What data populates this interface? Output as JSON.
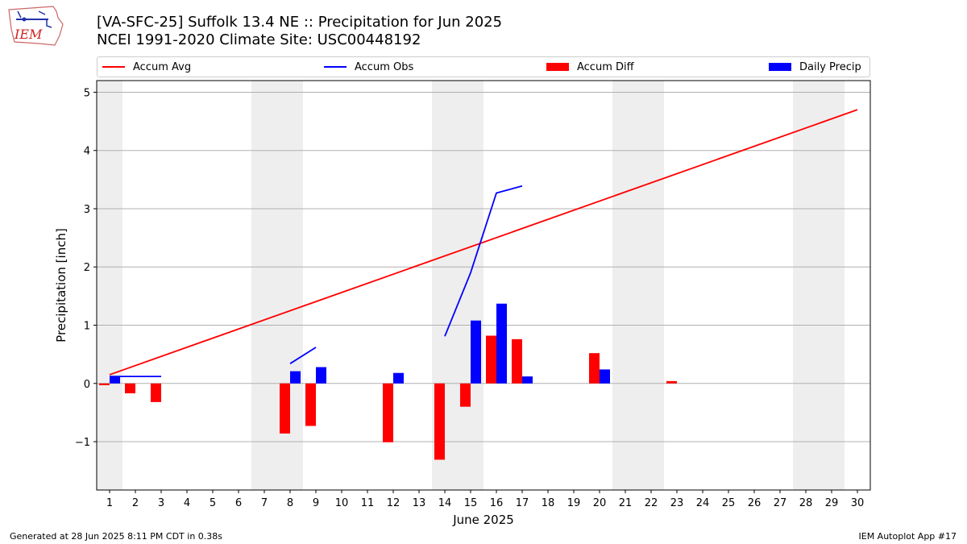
{
  "title_line1": "[VA-SFC-25] Suffolk 13.4 NE :: Precipitation for Jun 2025",
  "title_line2": "NCEI 1991-2020 Climate Site: USC00448192",
  "logo_text": "IEM",
  "footer_left": "Generated at 28 Jun 2025 8:11 PM CDT in 0.38s",
  "footer_right": "IEM Autoplot App #17",
  "colors": {
    "avg": "#ff0000",
    "obs": "#0000ff",
    "diff": "#ff0000",
    "daily": "#0000ff",
    "weekend": "#eeeeee",
    "grid": "#b0b0b0"
  },
  "chart_data": {
    "type": "bar",
    "title": "[VA-SFC-25] Suffolk 13.4 NE :: Precipitation for Jun 2025",
    "subtitle": "NCEI 1991-2020 Climate Site: USC00448192",
    "xlabel": "June 2025",
    "ylabel": "Precipitation [inch]",
    "ylim": [
      -1.83,
      5.2
    ],
    "yticks": [
      -1,
      0,
      1,
      2,
      3,
      4,
      5
    ],
    "ytick_labels": [
      "−1",
      "0",
      "1",
      "2",
      "3",
      "4",
      "5"
    ],
    "xlim": [
      0.5,
      30.5
    ],
    "categories": [
      1,
      2,
      3,
      4,
      5,
      6,
      7,
      8,
      9,
      10,
      11,
      12,
      13,
      14,
      15,
      16,
      17,
      18,
      19,
      20,
      21,
      22,
      23,
      24,
      25,
      26,
      27,
      28,
      29,
      30
    ],
    "grid": "horizontal",
    "legend_placement": "top",
    "legend": [
      "Accum Avg",
      "Accum Obs",
      "Accum Diff",
      "Daily Precip"
    ],
    "weekend_bands": [
      [
        0.5,
        1.5
      ],
      [
        6.5,
        8.5
      ],
      [
        13.5,
        15.5
      ],
      [
        20.5,
        22.5
      ],
      [
        27.5,
        29.5
      ]
    ],
    "series": [
      {
        "name": "Accum Avg",
        "kind": "line",
        "color": "#ff0000",
        "x": [
          1,
          30
        ],
        "y": [
          0.15,
          4.7
        ]
      },
      {
        "name": "Accum Obs",
        "kind": "line",
        "color": "#0000ff",
        "segments": [
          {
            "x": [
              1,
              2,
              3
            ],
            "y": [
              0.12,
              0.12,
              0.12
            ]
          },
          {
            "x": [
              8,
              9
            ],
            "y": [
              0.34,
              0.62
            ]
          },
          {
            "x": [
              14,
              15,
              16,
              17
            ],
            "y": [
              0.81,
              1.9,
              3.27,
              3.39
            ]
          }
        ]
      },
      {
        "name": "Accum Diff",
        "kind": "bar",
        "color": "#ff0000",
        "x": [
          1,
          2,
          3,
          8,
          9,
          12,
          14,
          15,
          16,
          17,
          20,
          23
        ],
        "values": [
          -0.03,
          -0.17,
          -0.32,
          -0.86,
          -0.73,
          -1.01,
          -1.31,
          -0.4,
          0.82,
          0.76,
          0.52,
          0.04
        ]
      },
      {
        "name": "Daily Precip",
        "kind": "bar",
        "color": "#0000ff",
        "x": [
          1,
          8,
          9,
          12,
          15,
          16,
          17,
          20
        ],
        "values": [
          0.12,
          0.21,
          0.28,
          0.18,
          1.08,
          1.37,
          0.12,
          0.24
        ]
      }
    ]
  }
}
